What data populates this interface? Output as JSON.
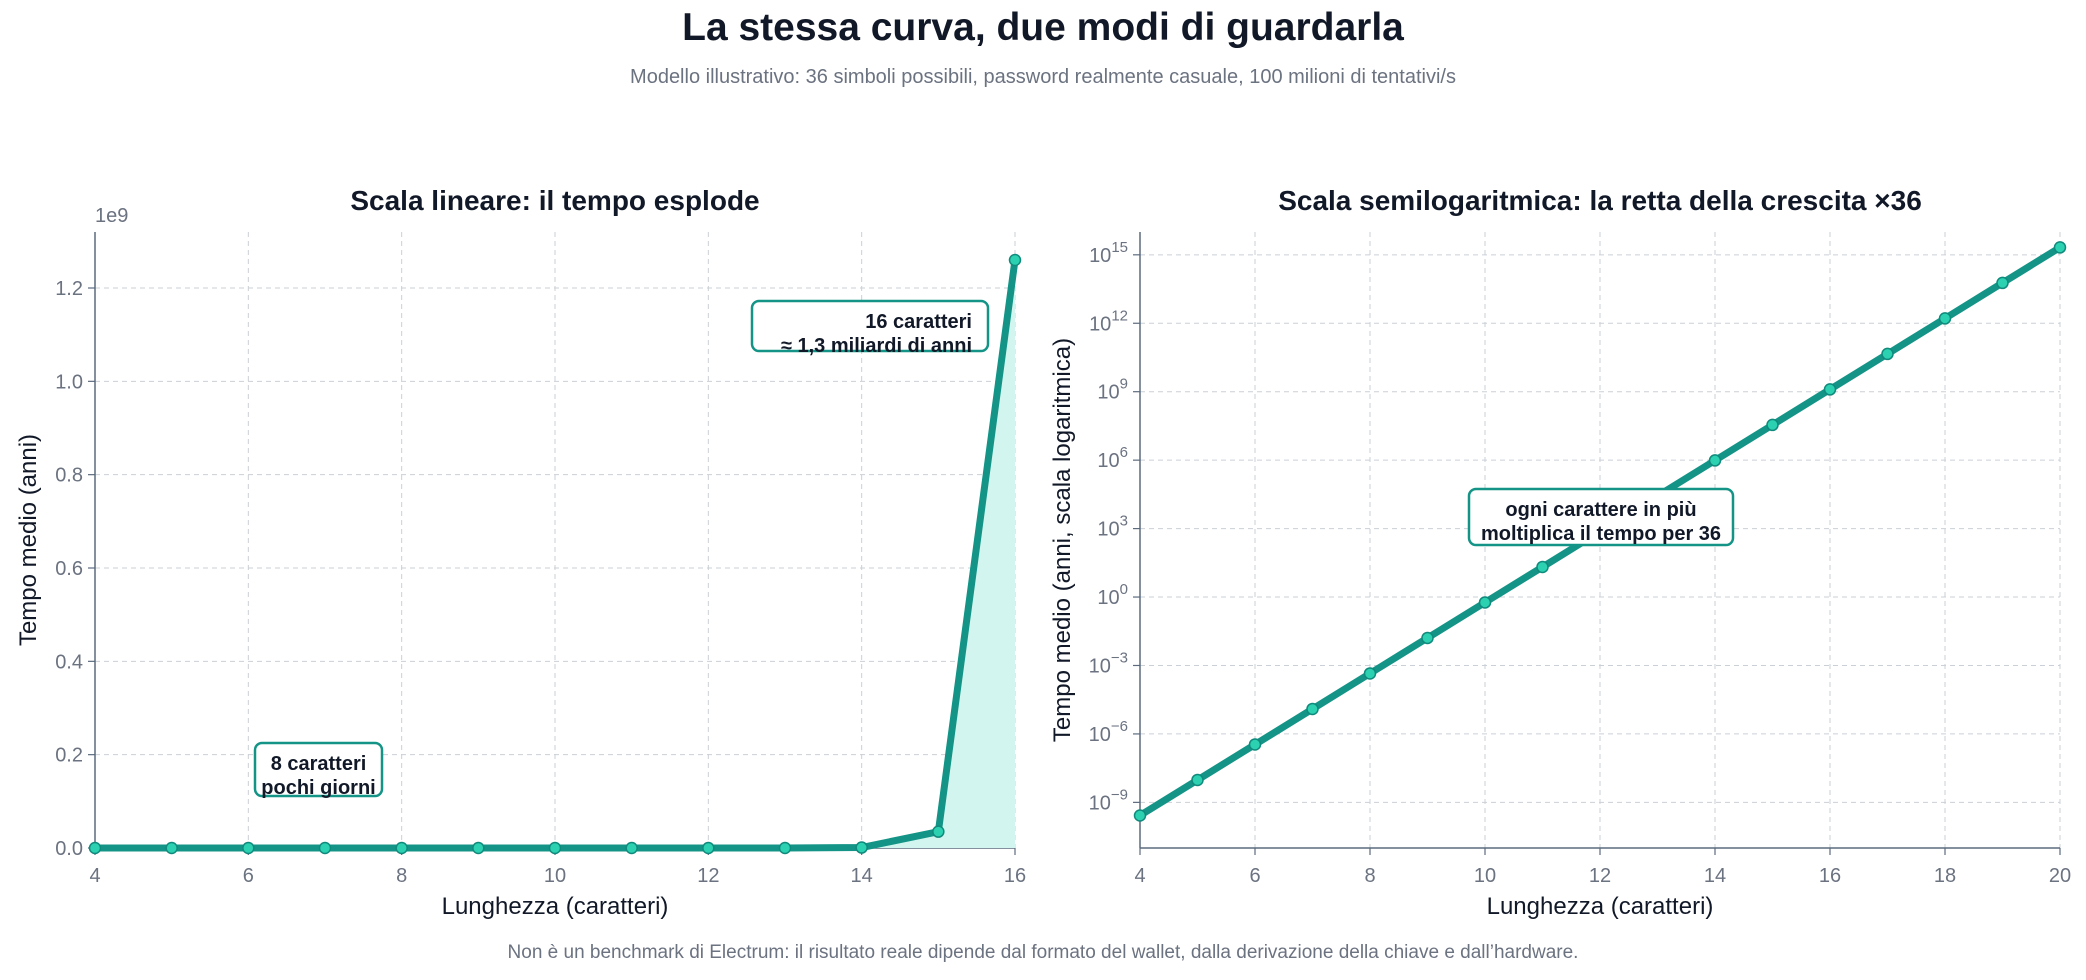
{
  "title": "La stessa curva, due modi di guardarla",
  "subtitle": "Modello illustrativo: 36 simboli possibili, password realmente casuale, 100 milioni di tentativi/s",
  "footnote": "Non è un benchmark di Electrum: il risultato reale dipende dal formato del wallet, dalla derivazione della chiave e dall’hardware.",
  "colors": {
    "line": "#149486",
    "marker_fill": "#2bd1b0",
    "area_fill": "#d2f6ef",
    "annotation_border": "#149486"
  },
  "chart_data": [
    {
      "type": "area",
      "title": "Scala lineare: il tempo esplode",
      "xlabel": "Lunghezza (caratteri)",
      "ylabel": "Tempo medio (anni)",
      "y_offset_label": "1e9",
      "xlim": [
        4,
        16
      ],
      "ylim": [
        0,
        1320000000.0
      ],
      "xticks": [
        4,
        6,
        8,
        10,
        12,
        14,
        16
      ],
      "yticks": [
        0,
        200000000.0,
        400000000.0,
        600000000.0,
        800000000.0,
        1000000000.0,
        1200000000.0
      ],
      "ytick_labels": [
        "0.0",
        "0.2",
        "0.4",
        "0.6",
        "0.8",
        "1.0",
        "1.2"
      ],
      "grid": true,
      "x": [
        4,
        5,
        6,
        7,
        8,
        9,
        10,
        11,
        12,
        13,
        14,
        15,
        16
      ],
      "y": [
        2.66e-10,
        9.58e-09,
        3.45e-07,
        1.24e-05,
        0.000447,
        0.0161,
        0.579,
        20.8,
        750,
        27000,
        972000,
        35000000.0,
        1260000000.0
      ],
      "annotations": [
        {
          "lines": [
            "16 caratteri",
            "≈ 1,3 miliardi di anni"
          ],
          "align": "right"
        },
        {
          "lines": [
            "8 caratteri",
            "pochi giorni"
          ],
          "align": "center"
        }
      ]
    },
    {
      "type": "line",
      "title": "Scala semilogaritmica: la retta della crescita ×36",
      "xlabel": "Lunghezza (caratteri)",
      "ylabel": "Tempo medio (anni, scala logaritmica)",
      "yscale": "log",
      "xlim": [
        4,
        20
      ],
      "ylim": [
        1e-11,
        1e+16
      ],
      "xticks": [
        4,
        6,
        8,
        10,
        12,
        14,
        16,
        18,
        20
      ],
      "yticks_exponents": [
        -9,
        -6,
        -3,
        0,
        3,
        6,
        9,
        12,
        15
      ],
      "grid": true,
      "x": [
        4,
        5,
        6,
        7,
        8,
        9,
        10,
        11,
        12,
        13,
        14,
        15,
        16,
        17,
        18,
        19,
        20
      ],
      "y": [
        2.66e-10,
        9.58e-09,
        3.45e-07,
        1.24e-05,
        0.000447,
        0.0161,
        0.579,
        20.8,
        750,
        27000,
        972000,
        35000000.0,
        1260000000.0,
        45300000000.0,
        1630000000000.0,
        58700000000000.0,
        2110000000000000.0
      ],
      "annotations": [
        {
          "lines": [
            "ogni carattere in più",
            "moltiplica il tempo per 36"
          ],
          "align": "center"
        }
      ]
    }
  ]
}
